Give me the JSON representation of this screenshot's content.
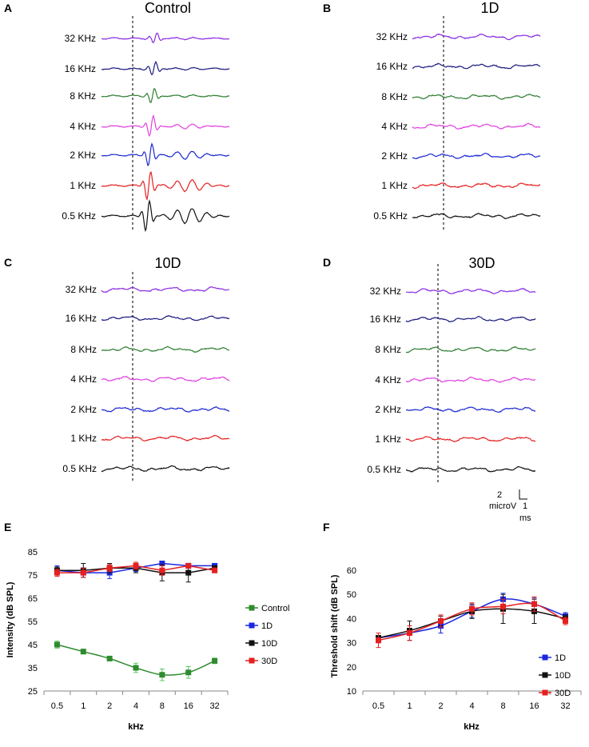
{
  "panels": {
    "A": {
      "letter": "A",
      "title": "Control"
    },
    "B": {
      "letter": "B",
      "title": "1D"
    },
    "C": {
      "letter": "C",
      "title": "10D"
    },
    "D": {
      "letter": "D",
      "title": "30D"
    },
    "E": {
      "letter": "E"
    },
    "F": {
      "letter": "F"
    }
  },
  "trace_labels": [
    "32 KHz",
    "16 KHz",
    "8 KHz",
    "4 KHz",
    "2 KHz",
    "1 KHz",
    "0.5 KHz"
  ],
  "trace_colors": [
    "#8a2be2",
    "#1a1a80",
    "#2e7d32",
    "#e040e0",
    "#1a28d0",
    "#e52020",
    "#111111"
  ],
  "scale_bar": {
    "voltage_value": "2",
    "voltage_unit": "microV",
    "time_value": "1",
    "time_unit": "ms"
  },
  "chart_data": [
    {
      "type": "line",
      "panel": "E",
      "xlabel": "kHz",
      "ylabel": "Intensity (dB SPL)",
      "categories": [
        "0.5",
        "1",
        "2",
        "4",
        "8",
        "16",
        "32"
      ],
      "ylim": [
        25,
        85
      ],
      "yticks": [
        25,
        35,
        45,
        55,
        65,
        75,
        85
      ],
      "legend_position": "right",
      "series": [
        {
          "name": "Control",
          "color": "#2e8b2e",
          "errcolor": "#5cc85c",
          "smooth": true,
          "values": [
            45,
            42,
            39,
            35,
            32,
            33,
            38
          ],
          "errors": [
            1.5,
            1,
            0.8,
            2,
            2.5,
            2.5,
            1.2
          ]
        },
        {
          "name": "1D",
          "color": "#1a28e0",
          "errcolor": "#1a28e0",
          "smooth": false,
          "values": [
            77,
            76,
            76,
            78,
            80,
            79,
            79
          ],
          "errors": [
            2,
            2,
            2.5,
            1.5,
            1,
            1,
            1
          ]
        },
        {
          "name": "10D",
          "color": "#111111",
          "errcolor": "#111111",
          "smooth": false,
          "values": [
            77,
            77,
            78,
            78,
            76,
            76,
            78
          ],
          "errors": [
            1.5,
            3,
            2,
            2,
            3.5,
            4,
            1
          ]
        },
        {
          "name": "30D",
          "color": "#e52020",
          "errcolor": "#e52020",
          "smooth": false,
          "values": [
            76,
            76,
            78,
            79,
            77,
            79,
            77
          ],
          "errors": [
            1.5,
            2,
            1.5,
            1.5,
            2,
            1,
            1
          ]
        }
      ]
    },
    {
      "type": "line",
      "panel": "F",
      "xlabel": "kHz",
      "ylabel": "Threshold shift (dB SPL)",
      "categories": [
        "0.5",
        "1",
        "2",
        "4",
        "8",
        "16",
        "32"
      ],
      "ylim": [
        10,
        60
      ],
      "yticks": [
        10,
        20,
        30,
        40,
        50,
        60
      ],
      "legend_position": "bottom-right",
      "series": [
        {
          "name": "1D",
          "color": "#1a28e0",
          "errcolor": "#1a28e0",
          "smooth": true,
          "values": [
            32,
            34,
            37,
            43,
            48,
            46,
            41
          ],
          "errors": [
            2,
            3,
            3,
            2.5,
            2.5,
            2.5,
            1.5
          ]
        },
        {
          "name": "10D",
          "color": "#111111",
          "errcolor": "#111111",
          "smooth": true,
          "values": [
            32,
            35,
            39,
            43,
            44,
            43,
            40
          ],
          "errors": [
            2,
            4,
            2,
            3,
            6,
            5,
            1.5
          ]
        },
        {
          "name": "30D",
          "color": "#e52020",
          "errcolor": "#e52020",
          "smooth": true,
          "values": [
            31,
            34,
            39,
            44,
            45,
            46,
            39
          ],
          "errors": [
            3,
            3,
            2.5,
            2.5,
            3,
            3,
            1.5
          ]
        }
      ]
    }
  ]
}
